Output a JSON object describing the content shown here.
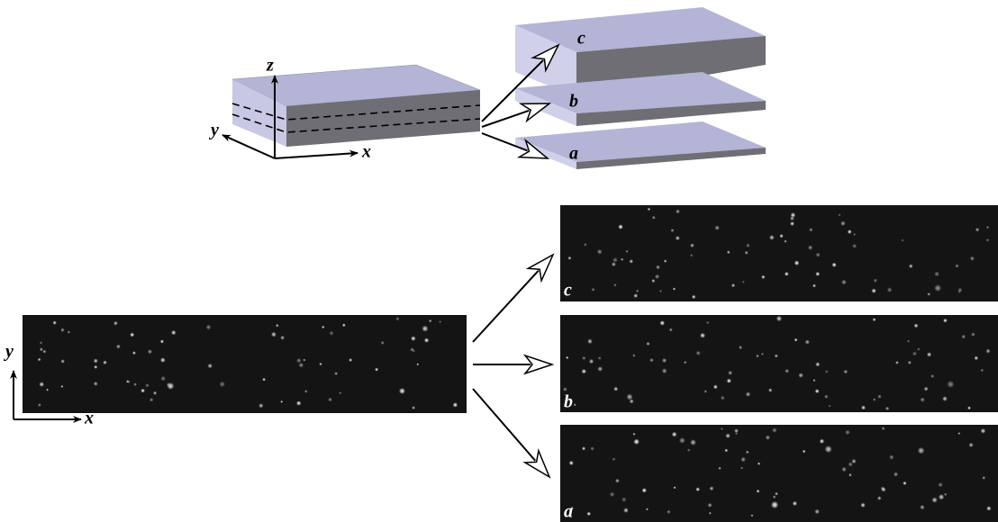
{
  "top": {
    "axes": {
      "z": "z",
      "y": "y",
      "x": "x"
    },
    "layers": [
      "c",
      "b",
      "a"
    ]
  },
  "bottom": {
    "axes": {
      "y": "y",
      "x": "x"
    },
    "images": [
      "c",
      "b",
      "a"
    ]
  }
}
